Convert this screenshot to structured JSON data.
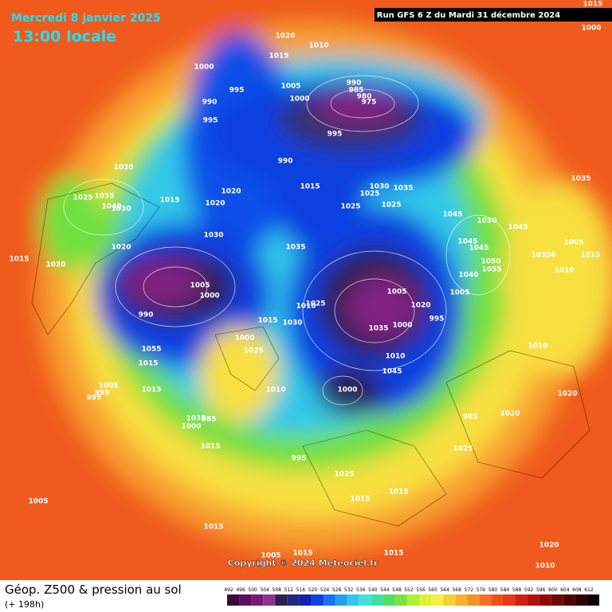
{
  "header": {
    "date": "Mercredi 8 janvier 2025",
    "time": "13:00 locale",
    "run": "Run GFS 6 Z du Mardi 31 décembre 2024"
  },
  "copyright": "Copyright © 2024 Meteociel.fr",
  "footer": {
    "title": "Géop. Z500 & pression au sol",
    "lead": "(+ 198h)"
  },
  "scale": {
    "ticks": [
      492,
      496,
      500,
      504,
      508,
      512,
      516,
      520,
      524,
      528,
      532,
      536,
      540,
      544,
      548,
      552,
      556,
      560,
      564,
      568,
      572,
      576,
      580,
      584,
      588,
      592,
      596,
      600,
      604,
      608,
      612
    ],
    "colors": [
      "#3a0a3a",
      "#5a1060",
      "#781878",
      "#903090",
      "#2a2050",
      "#1c2a80",
      "#1020b0",
      "#1040e0",
      "#1870f0",
      "#20a0f0",
      "#30c8f0",
      "#40e0e0",
      "#40e0a0",
      "#50e060",
      "#80e040",
      "#b0f030",
      "#e0f030",
      "#f8f040",
      "#f8d030",
      "#f8b030",
      "#f89028",
      "#f87020",
      "#f05018",
      "#e83818",
      "#d02010",
      "#b01010",
      "#900808",
      "#700808",
      "#500404",
      "#300202",
      "#100000"
    ]
  },
  "pressure_labels": [
    1020,
    1010,
    1015,
    1000,
    995,
    1005,
    1000,
    990,
    985,
    980,
    975,
    990,
    995,
    995,
    990,
    1030,
    1025,
    1035,
    1040,
    1030,
    1015,
    1020,
    1020,
    1015,
    1030,
    1025,
    1035,
    1025,
    1025,
    1045,
    1050,
    1045,
    1035,
    1030,
    1020,
    1015,
    1030,
    1035,
    1045,
    1045,
    1050,
    1055,
    1040,
    1005,
    10350,
    1015,
    1010,
    1005,
    1000,
    1005,
    1005,
    1025,
    1020,
    995,
    990,
    1015,
    1030,
    1035,
    1000,
    1000,
    1025,
    1055,
    1015,
    1010,
    1010,
    1045,
    1015,
    1005,
    999,
    995,
    1000,
    1010,
    1035,
    985,
    1000,
    985,
    1020,
    1020,
    1015,
    995,
    1025,
    1025,
    1015,
    1015,
    1005,
    1015,
    1020,
    1010,
    1005,
    1015,
    1015,
    1015,
    1000,
    1010
  ]
}
